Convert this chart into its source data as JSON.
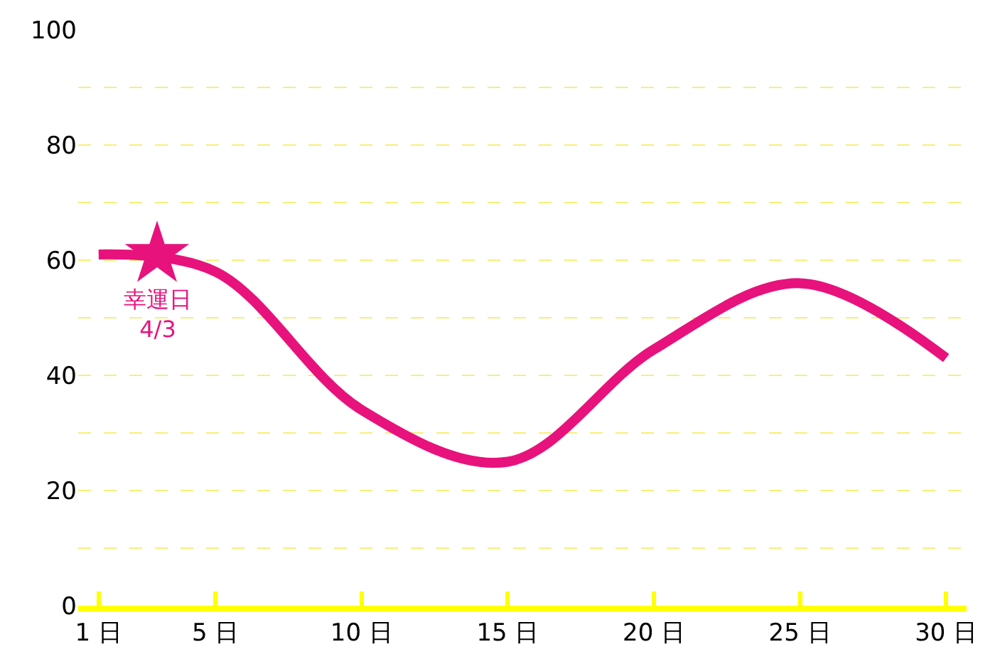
{
  "chart_data": {
    "type": "line",
    "x": [
      1,
      5,
      10,
      15,
      20,
      25,
      30
    ],
    "series": [
      {
        "color": "#e8127c",
        "values": [
          61,
          58,
          34,
          25,
          44.5,
          56,
          43
        ]
      },
      {
        "type": "scatter",
        "x": [
          3
        ],
        "color": "#e8127c",
        "marker": "star",
        "values": [
          61
        ]
      }
    ],
    "xlim": [
      0.3,
      30.7
    ],
    "xticks": [
      {
        "value": 1,
        "label": "1 日"
      },
      {
        "value": 5,
        "label": "5 日"
      },
      {
        "value": 10,
        "label": "10 日"
      },
      {
        "value": 15,
        "label": "15 日"
      },
      {
        "value": 20,
        "label": "20 日"
      },
      {
        "value": 25,
        "label": "25 日"
      },
      {
        "value": 30,
        "label": "30 日"
      }
    ],
    "ylim": [
      0,
      100
    ],
    "yticks": [
      0,
      {
        "value": 10,
        "label": null
      },
      20,
      {
        "value": 30,
        "label": null
      },
      40,
      {
        "value": 50,
        "label": null
      },
      60,
      {
        "value": 70,
        "label": null
      },
      80,
      {
        "value": 90,
        "label": null
      },
      100
    ],
    "grid": "y",
    "marker": "none",
    "line_style": "solid",
    "annotations": [
      {
        "text": "幸運日\n4/3",
        "x": 3,
        "y": 60.5
      }
    ]
  }
}
